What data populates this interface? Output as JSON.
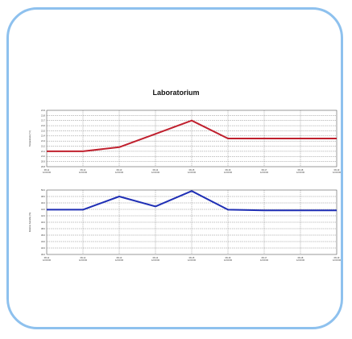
{
  "chart_data": [
    {
      "type": "line",
      "title": "Laboratorium",
      "ylabel": "Temperature (°C)",
      "ylim": [
        20.8,
        21.9
      ],
      "yticks": [
        "21.9",
        "21.8",
        "21.7",
        "21.6",
        "21.5",
        "21.4",
        "21.3",
        "21.2",
        "21.1",
        "21.0",
        "20.9",
        "20.8"
      ],
      "xticks": [
        "08-11 12:00:00",
        "08-12 12:00:00",
        "08-13 12:00:00",
        "08-14 12:00:00",
        "08-15 12:00:00",
        "08-16 12:00:00",
        "08-17 12:00:00",
        "08-18 12:00:00",
        "08-19 12:00:00"
      ],
      "grid": true,
      "color": "#c0202e",
      "values": [
        21.1,
        21.1,
        21.18,
        21.44,
        21.7,
        21.35,
        21.35,
        21.35,
        21.35
      ]
    },
    {
      "type": "line",
      "ylabel": "Relative humidity (%)",
      "ylim": [
        30,
        50
      ],
      "yticks": [
        "50.0",
        "48.0",
        "46.0",
        "44.0",
        "42.0",
        "40.0",
        "38.0",
        "36.0",
        "34.0",
        "32.0",
        "30.0"
      ],
      "xticks": [
        "08-11 12:00:00",
        "08-12 12:00:00",
        "08-13 12:00:00",
        "08-14 12:00:00",
        "08-15 12:00:00",
        "08-16 12:00:00",
        "08-17 12:00:00",
        "08-18 12:00:00",
        "08-19 12:00:00"
      ],
      "grid": true,
      "color": "#1f2fb5",
      "values": [
        43.9,
        43.9,
        48,
        44.9,
        49.7,
        43.9,
        43.7,
        43.7,
        43.7
      ]
    }
  ]
}
